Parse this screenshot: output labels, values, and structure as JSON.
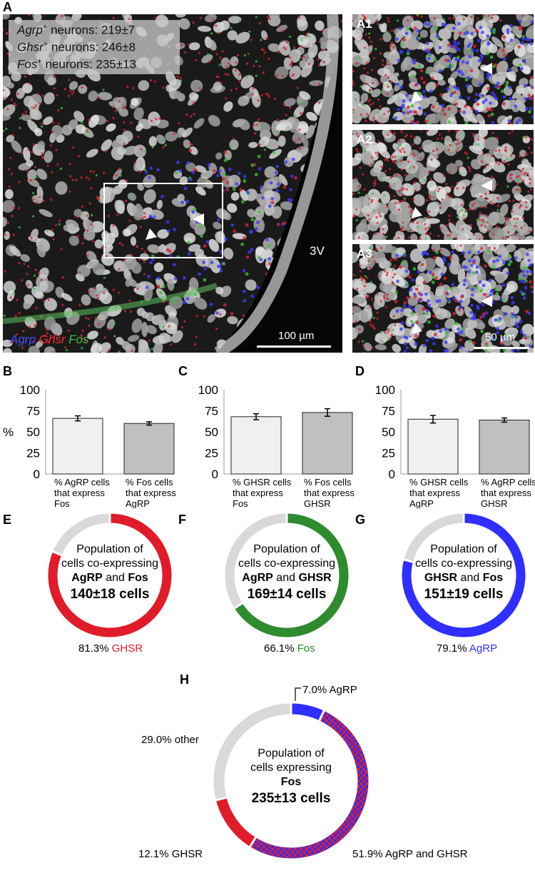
{
  "panels": {
    "A": "A",
    "A1": "A1",
    "A2": "A2",
    "A3": "A3",
    "B": "B",
    "C": "C",
    "D": "D",
    "E": "E",
    "F": "F",
    "G": "G",
    "H": "H"
  },
  "micrograph": {
    "legend": [
      {
        "gene": "Agrp",
        "sup": "+",
        "rest": " neurons: 219±7"
      },
      {
        "gene": "Ghsr",
        "sup": "+",
        "rest": " neurons: 246±8"
      },
      {
        "gene": "Fos",
        "sup": "+",
        "rest": " neurons:   235±13"
      }
    ],
    "channels": [
      {
        "name": "Agrp",
        "color": "#3a3aff"
      },
      {
        "name": "Ghsr",
        "color": "#e0202a"
      },
      {
        "name": "Fos",
        "color": "#40c040"
      }
    ],
    "ventricle_label": "3V",
    "scale_main": "100 µm",
    "scale_inset": "50 µm"
  },
  "chart_data": [
    {
      "panel": "B",
      "type": "bar",
      "ylabel": "%",
      "ylim": [
        0,
        100
      ],
      "yticks": [
        0,
        25,
        50,
        75,
        100
      ],
      "categories": [
        [
          "% AgRP cells",
          "that express",
          "Fos"
        ],
        [
          "% Fos cells",
          "that express",
          "AgRP"
        ]
      ],
      "values": [
        66,
        60
      ],
      "errors": [
        3,
        2
      ],
      "colors": [
        "#f0f0f0",
        "#c0c0c0"
      ]
    },
    {
      "panel": "C",
      "type": "bar",
      "ylabel": "",
      "ylim": [
        0,
        100
      ],
      "yticks": [
        0,
        25,
        50,
        75,
        100
      ],
      "categories": [
        [
          "% GHSR cells",
          "that express",
          "Fos"
        ],
        [
          "% Fos cells",
          "that express",
          "GHSR"
        ]
      ],
      "values": [
        68,
        73
      ],
      "errors": [
        3.5,
        4.5
      ],
      "colors": [
        "#f0f0f0",
        "#c0c0c0"
      ]
    },
    {
      "panel": "D",
      "type": "bar",
      "ylabel": "",
      "ylim": [
        0,
        100
      ],
      "yticks": [
        0,
        25,
        50,
        75,
        100
      ],
      "categories": [
        [
          "% GHSR cells",
          "that express",
          "AgRP"
        ],
        [
          "% AgRP cells",
          "that express",
          "GHSR"
        ]
      ],
      "values": [
        65,
        64
      ],
      "errors": [
        4.5,
        2.5
      ],
      "colors": [
        "#f0f0f0",
        "#c0c0c0"
      ]
    },
    {
      "panel": "E",
      "type": "pie",
      "center": [
        "Population of",
        "cells co-expressing"
      ],
      "center_bold": [
        "AgRP",
        " and ",
        "Fos"
      ],
      "count": "140±18 cells",
      "slices": [
        {
          "value": 81.3,
          "color": "#e01c2a"
        },
        {
          "value": 18.7,
          "color": "#d9d9d9"
        }
      ],
      "caption_value": "81.3%",
      "caption_name": "GHSR",
      "caption_color": "#e01c2a"
    },
    {
      "panel": "F",
      "type": "pie",
      "center": [
        "Population of",
        "cells co-expressing"
      ],
      "center_bold": [
        "AgRP",
        " and ",
        "GHSR"
      ],
      "count": "169±14 cells",
      "slices": [
        {
          "value": 66.1,
          "color": "#2e8b2e"
        },
        {
          "value": 33.9,
          "color": "#d9d9d9"
        }
      ],
      "caption_value": "66.1%",
      "caption_name": "Fos",
      "caption_color": "#2e8b2e"
    },
    {
      "panel": "G",
      "type": "pie",
      "center": [
        "Population of",
        "cells co-expressing"
      ],
      "center_bold": [
        "GHSR",
        " and ",
        "Fos"
      ],
      "count": "151±19 cells",
      "slices": [
        {
          "value": 79.1,
          "color": "#2f2fff"
        },
        {
          "value": 20.9,
          "color": "#d9d9d9"
        }
      ],
      "caption_value": "79.1%",
      "caption_name": "AgRP",
      "caption_color": "#2f2fff"
    },
    {
      "panel": "H",
      "type": "pie",
      "center": [
        "Population of",
        "cells expressing"
      ],
      "center_bold_single": "Fos",
      "count": "235±13 cells",
      "slices": [
        {
          "label": "7.0% AgRP",
          "value": 7.0,
          "color": "#2f2fff"
        },
        {
          "label": "51.9% AgRP and GHSR",
          "value": 51.9,
          "color": "pattern"
        },
        {
          "label": "12.1% GHSR",
          "value": 12.1,
          "color": "#e01c2a"
        },
        {
          "label": "29.0% other",
          "value": 29.0,
          "color": "#d9d9d9"
        }
      ]
    }
  ]
}
